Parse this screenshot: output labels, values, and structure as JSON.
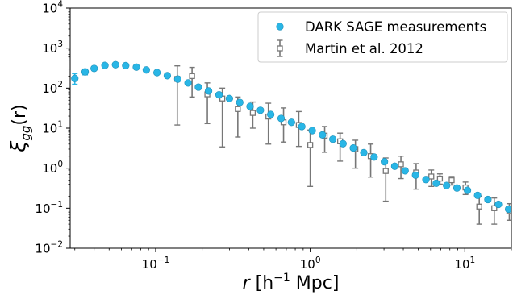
{
  "chart_data": {
    "type": "scatter",
    "xscale": "log",
    "yscale": "log",
    "xlim": [
      0.028,
      20
    ],
    "ylim": [
      0.01,
      10000
    ],
    "xticks": [
      {
        "value": 0.1,
        "base": "10",
        "exp": "−1"
      },
      {
        "value": 1,
        "base": "10",
        "exp": "0"
      },
      {
        "value": 10,
        "base": "10",
        "exp": "1"
      }
    ],
    "yticks": [
      {
        "value": 0.01,
        "base": "10",
        "exp": "−2"
      },
      {
        "value": 0.1,
        "base": "10",
        "exp": "−1"
      },
      {
        "value": 1,
        "base": "10",
        "exp": "0"
      },
      {
        "value": 10,
        "base": "10",
        "exp": "1"
      },
      {
        "value": 100,
        "base": "10",
        "exp": "2"
      },
      {
        "value": 1000,
        "base": "10",
        "exp": "3"
      },
      {
        "value": 10000,
        "base": "10",
        "exp": "4"
      }
    ],
    "xlabel": {
      "var": "r",
      "pre": " [h",
      "sup": "−1",
      "post": " Mpc]"
    },
    "ylabel": {
      "var": "ξ",
      "sub": "gg",
      "post": "(r)"
    },
    "legend_position": "upper-right",
    "series": [
      {
        "name": "DARK SAGE measurements",
        "marker": "circle",
        "color": "#29b6e6",
        "points": [
          {
            "x": 0.03,
            "y": 175,
            "err": [
              125,
              230
            ]
          },
          {
            "x": 0.035,
            "y": 255,
            "err": [
              215,
              300
            ]
          },
          {
            "x": 0.04,
            "y": 310,
            "err": [
              280,
              345
            ]
          },
          {
            "x": 0.047,
            "y": 370,
            "err": [
              345,
              395
            ]
          },
          {
            "x": 0.055,
            "y": 385,
            "err": [
              370,
              400
            ]
          },
          {
            "x": 0.064,
            "y": 365
          },
          {
            "x": 0.075,
            "y": 335
          },
          {
            "x": 0.087,
            "y": 285
          },
          {
            "x": 0.102,
            "y": 245
          },
          {
            "x": 0.119,
            "y": 205
          },
          {
            "x": 0.139,
            "y": 168
          },
          {
            "x": 0.162,
            "y": 135
          },
          {
            "x": 0.189,
            "y": 106
          },
          {
            "x": 0.22,
            "y": 85
          },
          {
            "x": 0.257,
            "y": 68
          },
          {
            "x": 0.3,
            "y": 55
          },
          {
            "x": 0.35,
            "y": 44
          },
          {
            "x": 0.408,
            "y": 35
          },
          {
            "x": 0.476,
            "y": 28
          },
          {
            "x": 0.555,
            "y": 22
          },
          {
            "x": 0.648,
            "y": 17.5
          },
          {
            "x": 0.756,
            "y": 14
          },
          {
            "x": 0.882,
            "y": 11
          },
          {
            "x": 1.03,
            "y": 8.7
          },
          {
            "x": 1.2,
            "y": 6.8
          },
          {
            "x": 1.4,
            "y": 5.3
          },
          {
            "x": 1.63,
            "y": 4.1
          },
          {
            "x": 1.9,
            "y": 3.2
          },
          {
            "x": 2.22,
            "y": 2.45
          },
          {
            "x": 2.59,
            "y": 1.9
          },
          {
            "x": 3.02,
            "y": 1.45
          },
          {
            "x": 3.52,
            "y": 1.12
          },
          {
            "x": 4.11,
            "y": 0.86
          },
          {
            "x": 4.8,
            "y": 0.67
          },
          {
            "x": 5.6,
            "y": 0.52
          },
          {
            "x": 6.53,
            "y": 0.42
          },
          {
            "x": 7.62,
            "y": 0.37
          },
          {
            "x": 8.89,
            "y": 0.32
          },
          {
            "x": 10.4,
            "y": 0.28
          },
          {
            "x": 12.1,
            "y": 0.21
          },
          {
            "x": 14.1,
            "y": 0.165
          },
          {
            "x": 16.5,
            "y": 0.125
          },
          {
            "x": 19.2,
            "y": 0.095
          }
        ]
      },
      {
        "name": "Martin et al. 2012",
        "marker": "square-open",
        "color": "#777777",
        "points": [
          {
            "x": 0.138,
            "y": 170,
            "err": [
              12,
              360
            ]
          },
          {
            "x": 0.172,
            "y": 200,
            "err": [
              60,
              330
            ]
          },
          {
            "x": 0.216,
            "y": 70,
            "err": [
              13,
              135
            ]
          },
          {
            "x": 0.27,
            "y": 55,
            "err": [
              3.4,
              100
            ]
          },
          {
            "x": 0.34,
            "y": 30,
            "err": [
              6,
              60
            ]
          },
          {
            "x": 0.425,
            "y": 24,
            "err": [
              10,
              45
            ]
          },
          {
            "x": 0.536,
            "y": 19.5,
            "err": [
              4,
              42
            ]
          },
          {
            "x": 0.672,
            "y": 14,
            "err": [
              4.5,
              32
            ]
          },
          {
            "x": 0.843,
            "y": 12,
            "err": [
              3.5,
              26
            ]
          },
          {
            "x": 1.0,
            "y": 3.8,
            "err": [
              0.35,
              9
            ]
          },
          {
            "x": 1.24,
            "y": 6.5,
            "err": [
              2.5,
              11
            ]
          },
          {
            "x": 1.56,
            "y": 4.7,
            "err": [
              1.5,
              7.5
            ]
          },
          {
            "x": 1.96,
            "y": 3.0,
            "err": [
              1.0,
              5
            ]
          },
          {
            "x": 2.46,
            "y": 2.0,
            "err": [
              0.6,
              4
            ]
          },
          {
            "x": 3.08,
            "y": 0.85,
            "err": [
              0.15,
              1.8
            ]
          },
          {
            "x": 3.86,
            "y": 1.25,
            "err": [
              0.55,
              2
            ]
          },
          {
            "x": 4.84,
            "y": 0.78,
            "err": [
              0.3,
              1.3
            ]
          },
          {
            "x": 6.07,
            "y": 0.62,
            "err": [
              0.35,
              0.9
            ]
          },
          {
            "x": 6.9,
            "y": 0.55,
            "err": [
              0.4,
              0.72
            ]
          },
          {
            "x": 8.22,
            "y": 0.5,
            "err": [
              0.38,
              0.62
            ]
          },
          {
            "x": 10.1,
            "y": 0.33,
            "err": [
              0.22,
              0.45
            ]
          },
          {
            "x": 12.4,
            "y": 0.11,
            "err": [
              0.04,
              0.2
            ]
          },
          {
            "x": 15.5,
            "y": 0.1,
            "err": [
              0.04,
              0.18
            ]
          },
          {
            "x": 19.4,
            "y": 0.085,
            "err": [
              0.05,
              0.13
            ]
          }
        ]
      }
    ]
  }
}
